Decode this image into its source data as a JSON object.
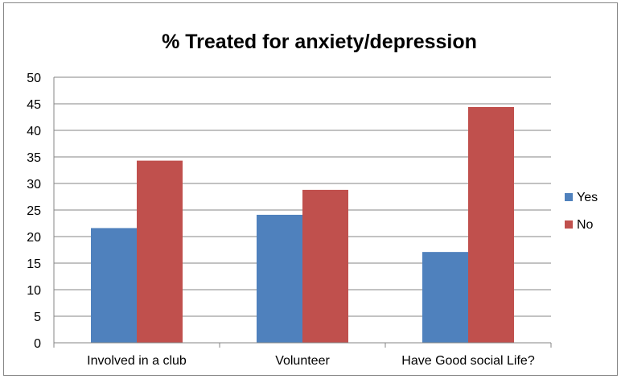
{
  "chart_data": {
    "type": "bar",
    "title": "% Treated for anxiety/depression",
    "xlabel": "",
    "ylabel": "",
    "categories": [
      "Involved in a club",
      "Volunteer",
      "Have Good social Life?"
    ],
    "series": [
      {
        "name": "Yes",
        "color": "#4F81BD",
        "values": [
          21.6,
          24.1,
          17.1
        ]
      },
      {
        "name": "No",
        "color": "#C0504D",
        "values": [
          34.3,
          28.8,
          44.4
        ]
      }
    ],
    "ylim": [
      0,
      50
    ],
    "yticks": [
      0,
      5,
      10,
      15,
      20,
      25,
      30,
      35,
      40,
      45,
      50
    ],
    "grid": true,
    "legend_position": "right"
  }
}
